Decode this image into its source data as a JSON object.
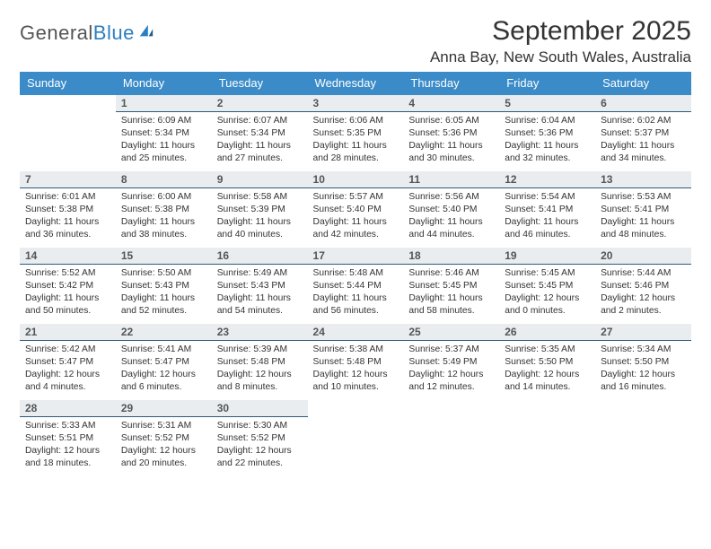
{
  "logo": {
    "text_gray": "General",
    "text_blue": "Blue"
  },
  "title": "September 2025",
  "location": "Anna Bay, New South Wales, Australia",
  "colors": {
    "header_bg": "#3b8bc8",
    "header_text": "#ffffff",
    "daynum_bg": "#e9edef",
    "daynum_border": "#2f5a7a",
    "body_text": "#333333",
    "logo_gray": "#555555",
    "logo_blue": "#2b7fc3",
    "background": "#ffffff"
  },
  "fonts": {
    "title_size_pt": 22,
    "location_size_pt": 13,
    "dow_size_pt": 10,
    "daynum_size_pt": 9,
    "body_size_pt": 8
  },
  "dow": [
    "Sunday",
    "Monday",
    "Tuesday",
    "Wednesday",
    "Thursday",
    "Friday",
    "Saturday"
  ],
  "weeks": [
    [
      null,
      {
        "n": "1",
        "sr": "Sunrise: 6:09 AM",
        "ss": "Sunset: 5:34 PM",
        "d1": "Daylight: 11 hours",
        "d2": "and 25 minutes."
      },
      {
        "n": "2",
        "sr": "Sunrise: 6:07 AM",
        "ss": "Sunset: 5:34 PM",
        "d1": "Daylight: 11 hours",
        "d2": "and 27 minutes."
      },
      {
        "n": "3",
        "sr": "Sunrise: 6:06 AM",
        "ss": "Sunset: 5:35 PM",
        "d1": "Daylight: 11 hours",
        "d2": "and 28 minutes."
      },
      {
        "n": "4",
        "sr": "Sunrise: 6:05 AM",
        "ss": "Sunset: 5:36 PM",
        "d1": "Daylight: 11 hours",
        "d2": "and 30 minutes."
      },
      {
        "n": "5",
        "sr": "Sunrise: 6:04 AM",
        "ss": "Sunset: 5:36 PM",
        "d1": "Daylight: 11 hours",
        "d2": "and 32 minutes."
      },
      {
        "n": "6",
        "sr": "Sunrise: 6:02 AM",
        "ss": "Sunset: 5:37 PM",
        "d1": "Daylight: 11 hours",
        "d2": "and 34 minutes."
      }
    ],
    [
      {
        "n": "7",
        "sr": "Sunrise: 6:01 AM",
        "ss": "Sunset: 5:38 PM",
        "d1": "Daylight: 11 hours",
        "d2": "and 36 minutes."
      },
      {
        "n": "8",
        "sr": "Sunrise: 6:00 AM",
        "ss": "Sunset: 5:38 PM",
        "d1": "Daylight: 11 hours",
        "d2": "and 38 minutes."
      },
      {
        "n": "9",
        "sr": "Sunrise: 5:58 AM",
        "ss": "Sunset: 5:39 PM",
        "d1": "Daylight: 11 hours",
        "d2": "and 40 minutes."
      },
      {
        "n": "10",
        "sr": "Sunrise: 5:57 AM",
        "ss": "Sunset: 5:40 PM",
        "d1": "Daylight: 11 hours",
        "d2": "and 42 minutes."
      },
      {
        "n": "11",
        "sr": "Sunrise: 5:56 AM",
        "ss": "Sunset: 5:40 PM",
        "d1": "Daylight: 11 hours",
        "d2": "and 44 minutes."
      },
      {
        "n": "12",
        "sr": "Sunrise: 5:54 AM",
        "ss": "Sunset: 5:41 PM",
        "d1": "Daylight: 11 hours",
        "d2": "and 46 minutes."
      },
      {
        "n": "13",
        "sr": "Sunrise: 5:53 AM",
        "ss": "Sunset: 5:41 PM",
        "d1": "Daylight: 11 hours",
        "d2": "and 48 minutes."
      }
    ],
    [
      {
        "n": "14",
        "sr": "Sunrise: 5:52 AM",
        "ss": "Sunset: 5:42 PM",
        "d1": "Daylight: 11 hours",
        "d2": "and 50 minutes."
      },
      {
        "n": "15",
        "sr": "Sunrise: 5:50 AM",
        "ss": "Sunset: 5:43 PM",
        "d1": "Daylight: 11 hours",
        "d2": "and 52 minutes."
      },
      {
        "n": "16",
        "sr": "Sunrise: 5:49 AM",
        "ss": "Sunset: 5:43 PM",
        "d1": "Daylight: 11 hours",
        "d2": "and 54 minutes."
      },
      {
        "n": "17",
        "sr": "Sunrise: 5:48 AM",
        "ss": "Sunset: 5:44 PM",
        "d1": "Daylight: 11 hours",
        "d2": "and 56 minutes."
      },
      {
        "n": "18",
        "sr": "Sunrise: 5:46 AM",
        "ss": "Sunset: 5:45 PM",
        "d1": "Daylight: 11 hours",
        "d2": "and 58 minutes."
      },
      {
        "n": "19",
        "sr": "Sunrise: 5:45 AM",
        "ss": "Sunset: 5:45 PM",
        "d1": "Daylight: 12 hours",
        "d2": "and 0 minutes."
      },
      {
        "n": "20",
        "sr": "Sunrise: 5:44 AM",
        "ss": "Sunset: 5:46 PM",
        "d1": "Daylight: 12 hours",
        "d2": "and 2 minutes."
      }
    ],
    [
      {
        "n": "21",
        "sr": "Sunrise: 5:42 AM",
        "ss": "Sunset: 5:47 PM",
        "d1": "Daylight: 12 hours",
        "d2": "and 4 minutes."
      },
      {
        "n": "22",
        "sr": "Sunrise: 5:41 AM",
        "ss": "Sunset: 5:47 PM",
        "d1": "Daylight: 12 hours",
        "d2": "and 6 minutes."
      },
      {
        "n": "23",
        "sr": "Sunrise: 5:39 AM",
        "ss": "Sunset: 5:48 PM",
        "d1": "Daylight: 12 hours",
        "d2": "and 8 minutes."
      },
      {
        "n": "24",
        "sr": "Sunrise: 5:38 AM",
        "ss": "Sunset: 5:48 PM",
        "d1": "Daylight: 12 hours",
        "d2": "and 10 minutes."
      },
      {
        "n": "25",
        "sr": "Sunrise: 5:37 AM",
        "ss": "Sunset: 5:49 PM",
        "d1": "Daylight: 12 hours",
        "d2": "and 12 minutes."
      },
      {
        "n": "26",
        "sr": "Sunrise: 5:35 AM",
        "ss": "Sunset: 5:50 PM",
        "d1": "Daylight: 12 hours",
        "d2": "and 14 minutes."
      },
      {
        "n": "27",
        "sr": "Sunrise: 5:34 AM",
        "ss": "Sunset: 5:50 PM",
        "d1": "Daylight: 12 hours",
        "d2": "and 16 minutes."
      }
    ],
    [
      {
        "n": "28",
        "sr": "Sunrise: 5:33 AM",
        "ss": "Sunset: 5:51 PM",
        "d1": "Daylight: 12 hours",
        "d2": "and 18 minutes."
      },
      {
        "n": "29",
        "sr": "Sunrise: 5:31 AM",
        "ss": "Sunset: 5:52 PM",
        "d1": "Daylight: 12 hours",
        "d2": "and 20 minutes."
      },
      {
        "n": "30",
        "sr": "Sunrise: 5:30 AM",
        "ss": "Sunset: 5:52 PM",
        "d1": "Daylight: 12 hours",
        "d2": "and 22 minutes."
      },
      null,
      null,
      null,
      null
    ]
  ]
}
